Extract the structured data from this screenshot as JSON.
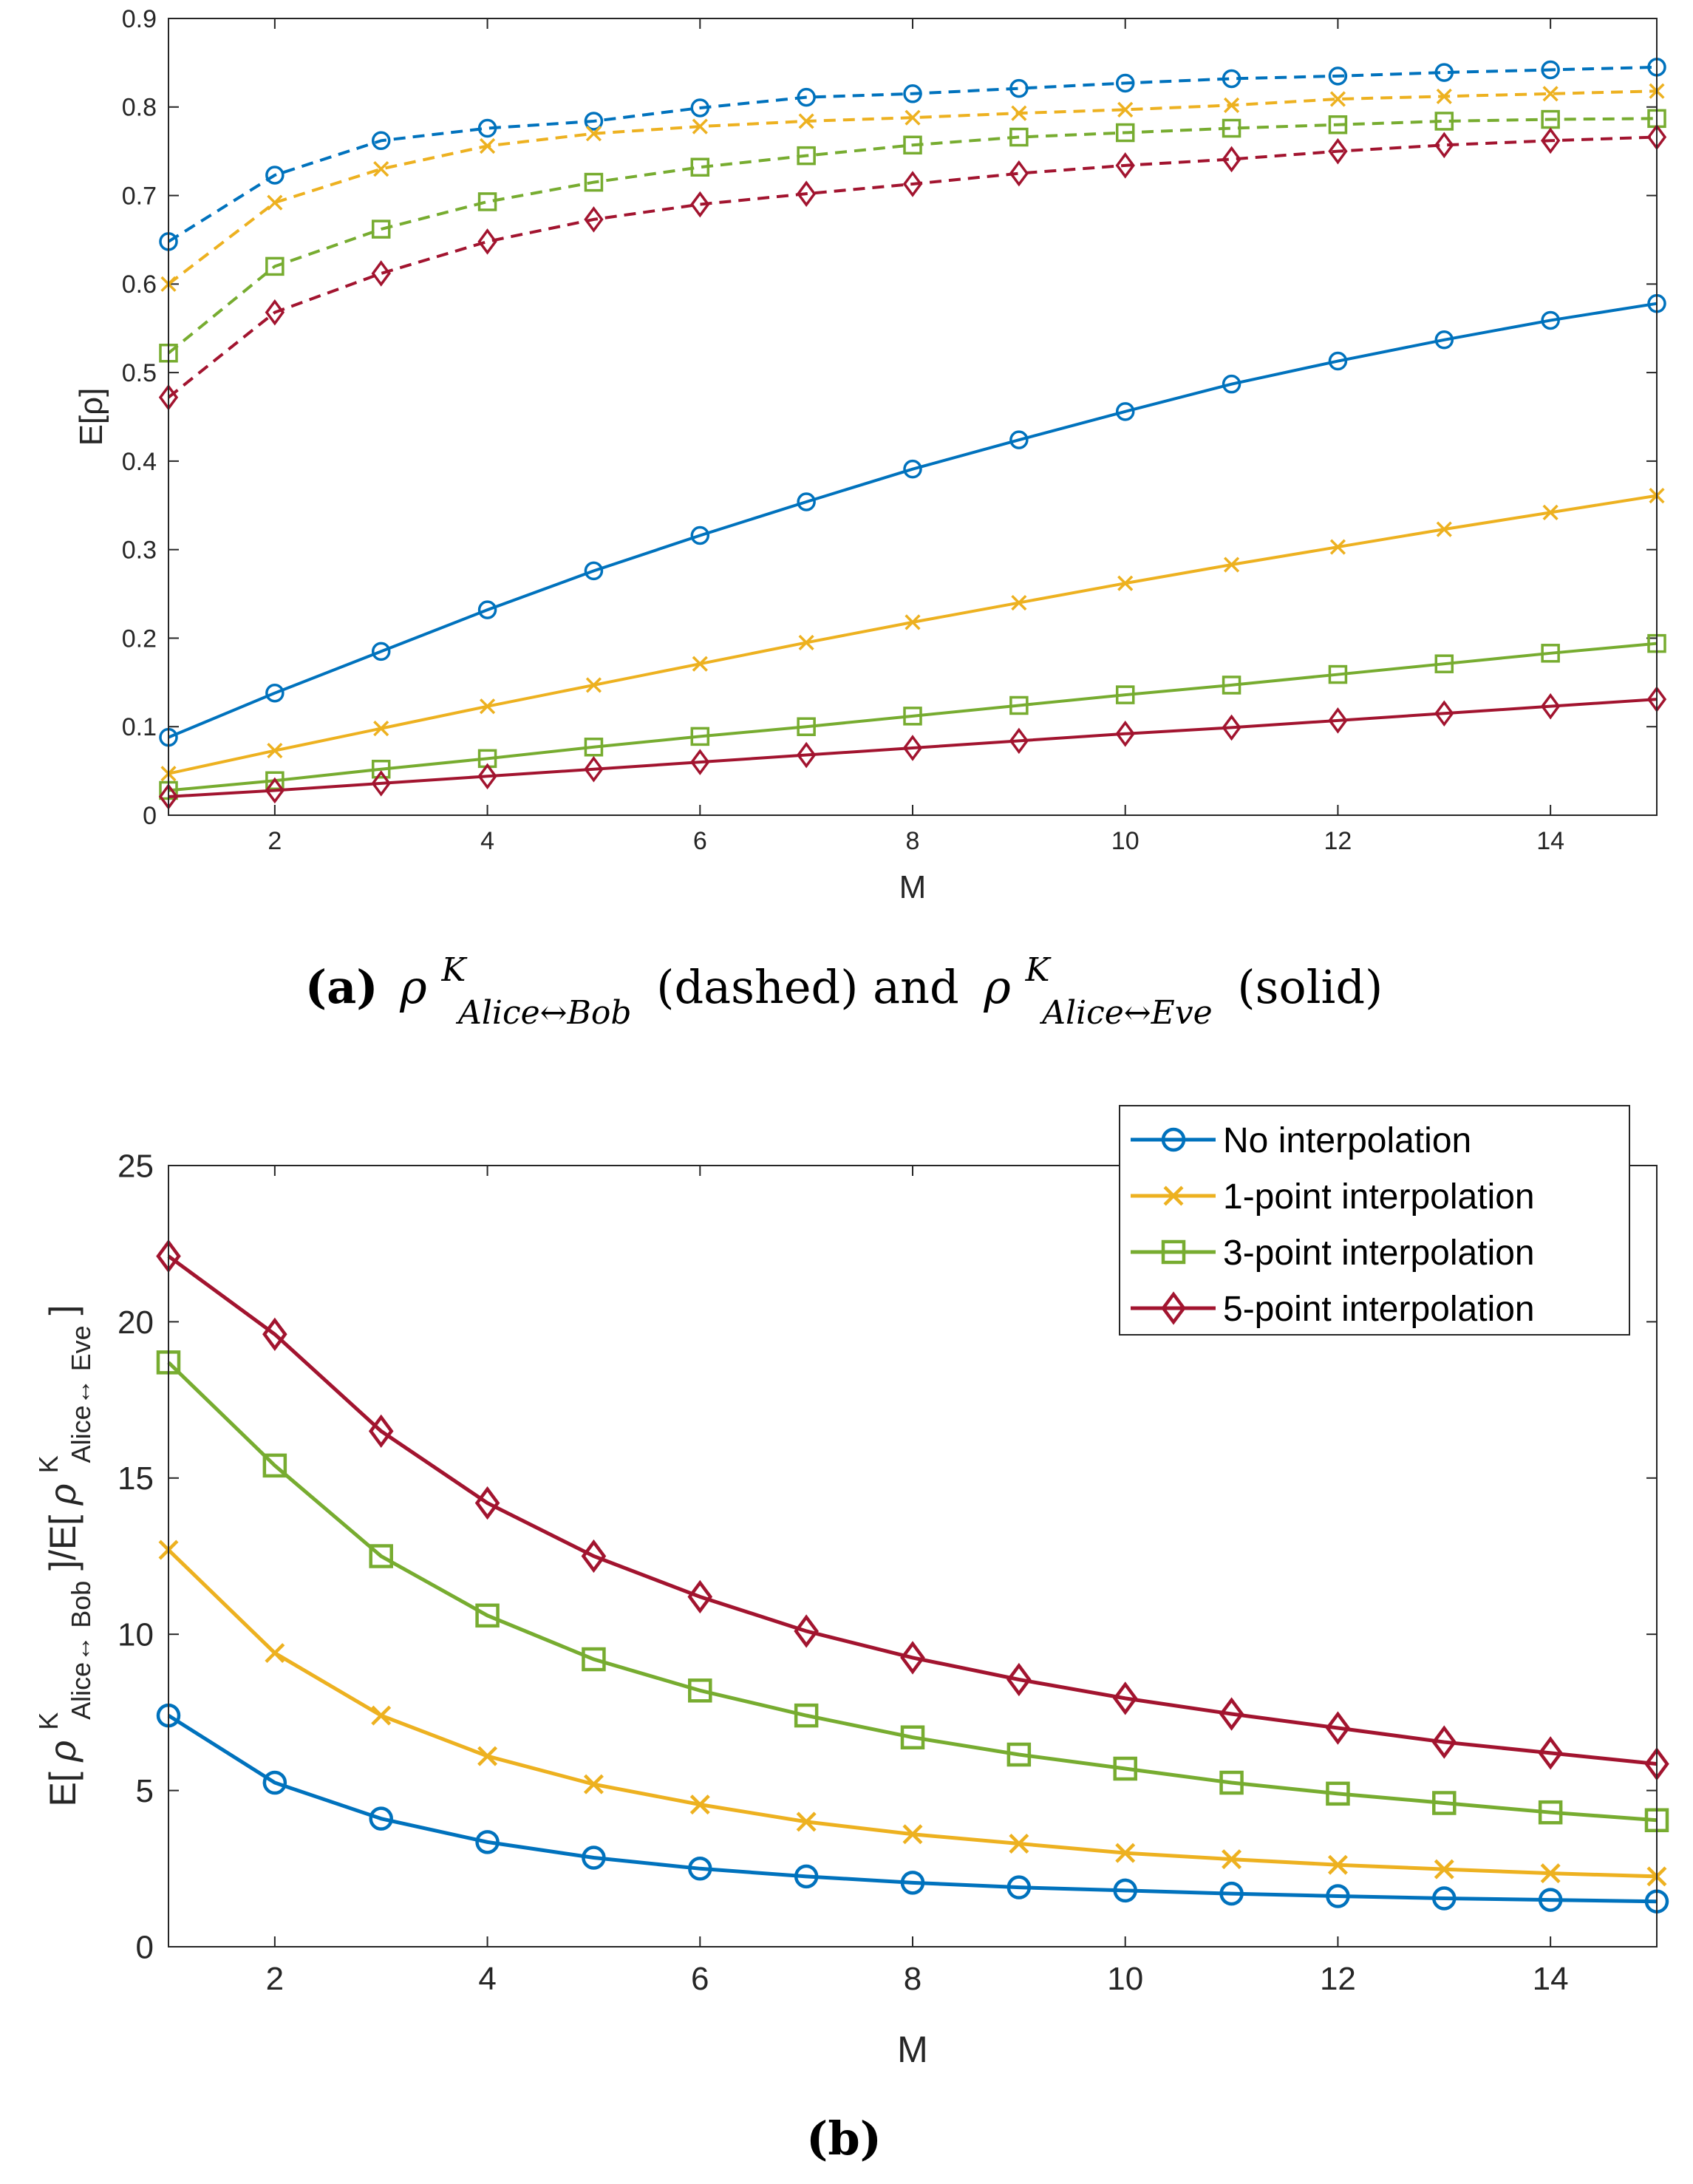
{
  "colors": {
    "no_interp": "#0072BD",
    "one_point": "#EDB120",
    "three_point": "#77AC30",
    "five_point": "#A2142F",
    "axis": "#262626"
  },
  "chart_data": [
    {
      "type": "line",
      "title": "",
      "xlabel": "M",
      "ylabel": "E[ρ]",
      "xlim": [
        1,
        15
      ],
      "ylim": [
        0,
        0.9
      ],
      "xticks": [
        "2",
        "4",
        "6",
        "8",
        "10",
        "12",
        "14"
      ],
      "yticks": [
        "0",
        "0.1",
        "0.2",
        "0.3",
        "0.4",
        "0.5",
        "0.6",
        "0.7",
        "0.8",
        "0.9"
      ],
      "x": [
        1,
        2,
        3,
        4,
        5,
        6,
        7,
        8,
        9,
        10,
        11,
        12,
        13,
        14,
        15
      ],
      "caption": {
        "label": "(a)",
        "rho": "ρ",
        "sup": "K",
        "sub_bob": "Alice↔Bob",
        "dashed": "(dashed) and",
        "sub_eve": "Alice↔Eve",
        "solid": "(solid)"
      },
      "series": [
        {
          "name": "No interpolation (Alice↔Bob)",
          "style": "dashed",
          "marker": "circle",
          "color_key": "no_interp",
          "values": [
            0.648,
            0.723,
            0.762,
            0.776,
            0.784,
            0.799,
            0.811,
            0.815,
            0.821,
            0.827,
            0.832,
            0.835,
            0.839,
            0.842,
            0.845
          ]
        },
        {
          "name": "1-point interpolation (Alice↔Bob)",
          "style": "dashed",
          "marker": "x",
          "color_key": "one_point",
          "values": [
            0.6,
            0.692,
            0.73,
            0.756,
            0.77,
            0.778,
            0.784,
            0.788,
            0.793,
            0.797,
            0.802,
            0.809,
            0.812,
            0.815,
            0.818
          ]
        },
        {
          "name": "3-point interpolation (Alice↔Bob)",
          "style": "dashed",
          "marker": "square",
          "color_key": "three_point",
          "values": [
            0.522,
            0.62,
            0.662,
            0.693,
            0.715,
            0.732,
            0.745,
            0.757,
            0.766,
            0.771,
            0.776,
            0.78,
            0.784,
            0.786,
            0.787
          ]
        },
        {
          "name": "5-point interpolation (Alice↔Bob)",
          "style": "dashed",
          "marker": "diamond",
          "color_key": "five_point",
          "values": [
            0.472,
            0.568,
            0.612,
            0.648,
            0.673,
            0.69,
            0.702,
            0.713,
            0.725,
            0.734,
            0.741,
            0.75,
            0.757,
            0.762,
            0.766
          ]
        },
        {
          "name": "No interpolation (Alice↔Eve)",
          "style": "solid",
          "marker": "circle",
          "color_key": "no_interp",
          "values": [
            0.088,
            0.138,
            0.185,
            0.232,
            0.276,
            0.316,
            0.354,
            0.391,
            0.424,
            0.456,
            0.487,
            0.513,
            0.537,
            0.559,
            0.578
          ]
        },
        {
          "name": "1-point interpolation (Alice↔Eve)",
          "style": "solid",
          "marker": "x",
          "color_key": "one_point",
          "values": [
            0.047,
            0.073,
            0.098,
            0.123,
            0.147,
            0.171,
            0.195,
            0.218,
            0.24,
            0.262,
            0.283,
            0.303,
            0.323,
            0.342,
            0.361
          ]
        },
        {
          "name": "3-point interpolation (Alice↔Eve)",
          "style": "solid",
          "marker": "square",
          "color_key": "three_point",
          "values": [
            0.028,
            0.039,
            0.052,
            0.064,
            0.077,
            0.089,
            0.1,
            0.112,
            0.124,
            0.136,
            0.147,
            0.159,
            0.171,
            0.183,
            0.194
          ]
        },
        {
          "name": "5-point interpolation (Alice↔Eve)",
          "style": "solid",
          "marker": "diamond",
          "color_key": "five_point",
          "values": [
            0.021,
            0.028,
            0.036,
            0.044,
            0.052,
            0.06,
            0.068,
            0.076,
            0.084,
            0.092,
            0.099,
            0.107,
            0.115,
            0.123,
            0.131
          ]
        }
      ]
    },
    {
      "type": "line",
      "title": "",
      "xlabel": "M",
      "ylabel_parts": {
        "pre": "E[",
        "rho": "ρ",
        "sup": "K",
        "sub_bob": "Alice↔ Bob",
        "mid": "]/E[",
        "sub_eve": "Alice↔ Eve",
        "post": "]"
      },
      "xlim": [
        1,
        15
      ],
      "ylim": [
        0,
        25
      ],
      "xticks": [
        "2",
        "4",
        "6",
        "8",
        "10",
        "12",
        "14"
      ],
      "yticks": [
        "0",
        "5",
        "10",
        "15",
        "20",
        "25"
      ],
      "x": [
        1,
        2,
        3,
        4,
        5,
        6,
        7,
        8,
        9,
        10,
        11,
        12,
        13,
        14,
        15
      ],
      "caption": {
        "label": "(b)"
      },
      "legend": {
        "position": "top-right",
        "entries": [
          "No interpolation",
          "1-point interpolation",
          "3-point interpolation",
          "5-point interpolation"
        ]
      },
      "series": [
        {
          "name": "No interpolation",
          "style": "solid",
          "marker": "circle",
          "color_key": "no_interp",
          "values": [
            7.4,
            5.25,
            4.1,
            3.35,
            2.85,
            2.5,
            2.25,
            2.05,
            1.9,
            1.8,
            1.7,
            1.62,
            1.55,
            1.5,
            1.45
          ]
        },
        {
          "name": "1-point interpolation",
          "style": "solid",
          "marker": "x",
          "color_key": "one_point",
          "values": [
            12.7,
            9.4,
            7.4,
            6.1,
            5.2,
            4.55,
            4.0,
            3.6,
            3.3,
            3.0,
            2.8,
            2.62,
            2.48,
            2.35,
            2.25
          ]
        },
        {
          "name": "3-point interpolation",
          "style": "solid",
          "marker": "square",
          "color_key": "three_point",
          "values": [
            18.7,
            15.4,
            12.5,
            10.6,
            9.2,
            8.2,
            7.4,
            6.7,
            6.15,
            5.7,
            5.25,
            4.9,
            4.6,
            4.3,
            4.05
          ]
        },
        {
          "name": "5-point interpolation",
          "style": "solid",
          "marker": "diamond",
          "color_key": "five_point",
          "values": [
            22.1,
            19.6,
            16.5,
            14.2,
            12.5,
            11.2,
            10.1,
            9.25,
            8.55,
            7.95,
            7.45,
            7.0,
            6.55,
            6.2,
            5.85
          ]
        }
      ]
    }
  ]
}
